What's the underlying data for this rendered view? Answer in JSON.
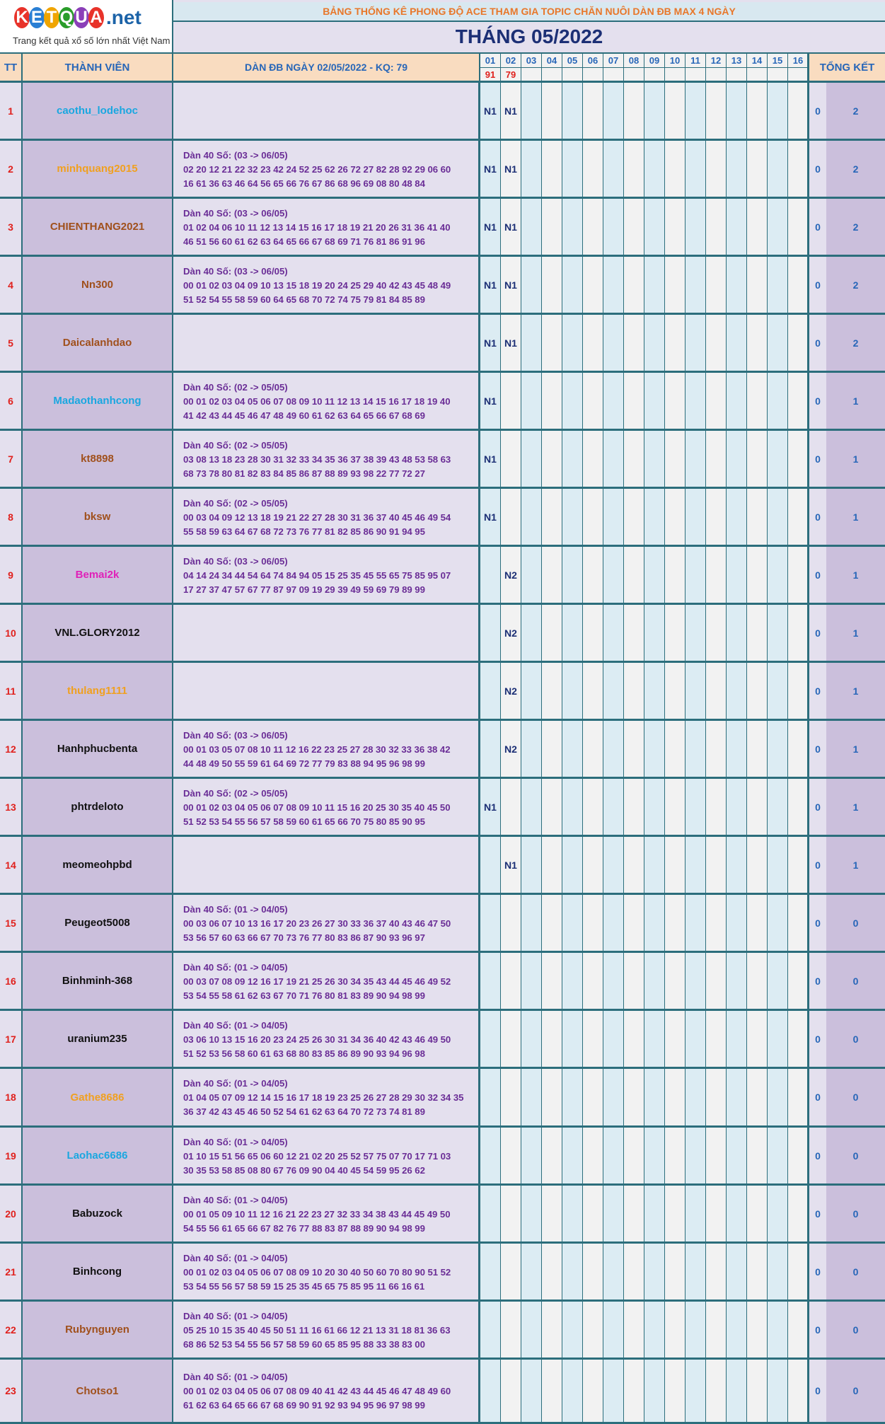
{
  "logo": {
    "letters": [
      "K",
      "E",
      "T",
      "Q",
      "U",
      "A"
    ],
    "letter_colors": [
      "#e8332a",
      "#2a7fd4",
      "#f0a500",
      "#2a9d2a",
      "#8b3fb8",
      "#e8332a"
    ],
    "suffix": ".net",
    "tagline": "Trang kết quả xổ số lớn nhất Việt Nam"
  },
  "header": {
    "title": "BẢNG THỐNG KÊ PHONG ĐỘ ACE THAM GIA TOPIC CHĂN NUÔI DÀN ĐB MAX 4 NGÀY",
    "month": "THÁNG 05/2022"
  },
  "columns": {
    "tt": "TT",
    "member": "THÀNH VIÊN",
    "dan": "DÀN ĐB NGÀY 02/05/2022 - KQ: 79",
    "total": "TỔNG KẾT",
    "days": [
      "01",
      "02",
      "03",
      "04",
      "05",
      "06",
      "07",
      "08",
      "09",
      "10",
      "11",
      "12",
      "13",
      "14",
      "15",
      "16"
    ],
    "kq": [
      "91",
      "79",
      "",
      "",
      "",
      "",
      "",
      "",
      "",
      "",
      "",
      "",
      "",
      "",
      "",
      ""
    ]
  },
  "colors": {
    "accent_border": "#2c6e7c",
    "header_bg": "#f9dcc0",
    "day_col_light": "#dcecf3",
    "day_col_grey": "#f2f2f2"
  },
  "rows": [
    {
      "tt": "1",
      "name": "caothu_lodehoc",
      "color": "#1aa7e0",
      "h": "",
      "l1": "",
      "l2": "",
      "d1": "N1",
      "d2": "N1",
      "t1": "0",
      "t2": "2"
    },
    {
      "tt": "2",
      "name": "minhquang2015",
      "color": "#f0a020",
      "h": "Dàn 40 Số: (03 -> 06/05)",
      "l1": "02 20 12 21 22 32 23 42 24 52 25 62 26 72 27 82 28 92 29 06 60",
      "l2": "16 61 36 63 46 64 56 65 66 76 67 86 68 96 69 08 80 48 84",
      "d1": "N1",
      "d2": "N1",
      "t1": "0",
      "t2": "2"
    },
    {
      "tt": "3",
      "name": "CHIENTHANG2021",
      "color": "#a0501c",
      "h": "Dàn 40 Số: (03 -> 06/05)",
      "l1": "01 02 04 06 10 11 12 13 14 15 16 17 18 19 21 20 26 31 36 41 40",
      "l2": "46 51 56 60 61 62 63 64 65 66 67 68 69 71 76 81 86 91 96",
      "d1": "N1",
      "d2": "N1",
      "t1": "0",
      "t2": "2"
    },
    {
      "tt": "4",
      "name": "Nn300",
      "color": "#a0501c",
      "h": "Dàn 40 Số: (03 -> 06/05)",
      "l1": "00 01 02 03 04 09 10 13 15 18 19 20 24 25 29 40 42 43 45 48 49",
      "l2": "51 52 54 55 58 59 60 64 65 68 70 72 74 75 79 81 84 85 89",
      "d1": "N1",
      "d2": "N1",
      "t1": "0",
      "t2": "2"
    },
    {
      "tt": "5",
      "name": "Daicalanhdao",
      "color": "#a0501c",
      "h": "",
      "l1": "",
      "l2": "",
      "d1": "N1",
      "d2": "N1",
      "t1": "0",
      "t2": "2"
    },
    {
      "tt": "6",
      "name": "Madaothanhcong",
      "color": "#1aa7e0",
      "h": "Dàn 40 Số: (02 -> 05/05)",
      "l1": "00 01 02 03 04 05 06 07 08 09 10 11 12 13 14 15 16 17 18 19 40",
      "l2": "41 42 43 44 45 46 47 48 49 60 61 62 63 64 65 66 67 68 69",
      "d1": "N1",
      "d2": "",
      "t1": "0",
      "t2": "1"
    },
    {
      "tt": "7",
      "name": "kt8898",
      "color": "#a0501c",
      "h": "Dàn 40 Số: (02 -> 05/05)",
      "l1": "03 08 13 18 23 28 30 31 32 33 34 35 36 37 38 39 43 48 53 58 63",
      "l2": "68 73 78 80 81 82 83 84 85 86 87 88 89 93 98 22 77 72 27",
      "d1": "N1",
      "d2": "",
      "t1": "0",
      "t2": "1"
    },
    {
      "tt": "8",
      "name": "bksw",
      "color": "#a0501c",
      "h": "Dàn 40 Số: (02 -> 05/05)",
      "l1": "00 03 04 09 12 13 18 19 21 22 27 28 30 31 36 37 40 45 46 49 54",
      "l2": "55 58 59 63 64 67 68 72 73 76 77 81 82 85 86 90 91 94 95",
      "d1": "N1",
      "d2": "",
      "t1": "0",
      "t2": "1"
    },
    {
      "tt": "9",
      "name": "Bemai2k",
      "color": "#e020b8",
      "h": "Dàn 40 Số: (03 -> 06/05)",
      "l1": "04 14 24 34 44 54 64 74 84 94 05 15 25 35 45 55 65 75 85 95 07",
      "l2": "17 27 37 47 57 67 77 87 97 09 19 29 39 49 59 69 79 89 99",
      "d1": "",
      "d2": "N2",
      "t1": "0",
      "t2": "1"
    },
    {
      "tt": "10",
      "name": "VNL.GLORY2012",
      "color": "#111111",
      "h": "",
      "l1": "",
      "l2": "",
      "d1": "",
      "d2": "N2",
      "t1": "0",
      "t2": "1"
    },
    {
      "tt": "11",
      "name": "thulang1111",
      "color": "#f0a020",
      "h": "",
      "l1": "",
      "l2": "",
      "d1": "",
      "d2": "N2",
      "t1": "0",
      "t2": "1"
    },
    {
      "tt": "12",
      "name": "Hanhphucbenta",
      "color": "#111111",
      "h": "Dàn 40 Số: (03 -> 06/05)",
      "l1": "00 01 03 05 07 08 10 11 12 16 22 23 25 27 28 30 32 33 36 38 42",
      "l2": "44 48 49 50 55 59 61 64 69 72 77 79 83 88 94 95 96 98 99",
      "d1": "",
      "d2": "N2",
      "t1": "0",
      "t2": "1"
    },
    {
      "tt": "13",
      "name": "phtrdeloto",
      "color": "#111111",
      "h": "Dàn 40 Số: (02 -> 05/05)",
      "l1": "00 01 02 03 04 05 06 07 08 09 10 11 15 16 20 25 30 35 40 45 50",
      "l2": "51 52 53 54 55 56 57 58 59 60 61 65 66 70 75 80 85 90 95",
      "d1": "N1",
      "d2": "",
      "t1": "0",
      "t2": "1"
    },
    {
      "tt": "14",
      "name": "meomeohpbd",
      "color": "#111111",
      "h": "",
      "l1": "",
      "l2": "",
      "d1": "",
      "d2": "N1",
      "t1": "0",
      "t2": "1"
    },
    {
      "tt": "15",
      "name": "Peugeot5008",
      "color": "#111111",
      "h": "Dàn 40 Số: (01 -> 04/05)",
      "l1": "00 03 06 07 10 13 16 17 20 23 26 27 30 33 36 37 40 43 46 47 50",
      "l2": "53 56 57 60 63 66 67 70 73 76 77 80 83 86 87 90 93 96 97",
      "d1": "",
      "d2": "",
      "t1": "0",
      "t2": "0"
    },
    {
      "tt": "16",
      "name": "Binhminh-368",
      "color": "#111111",
      "h": "Dàn 40 Số: (01 -> 04/05)",
      "l1": "00 03 07 08 09 12 16 17 19 21 25 26 30 34 35 43 44 45 46 49 52",
      "l2": "53 54 55 58 61 62 63 67 70 71 76 80 81 83 89 90 94 98 99",
      "d1": "",
      "d2": "",
      "t1": "0",
      "t2": "0"
    },
    {
      "tt": "17",
      "name": "uranium235",
      "color": "#111111",
      "h": "Dàn 40 Số: (01 -> 04/05)",
      "l1": "03 06 10 13 15 16 20 23 24 25 26 30 31 34 36 40 42 43 46 49 50",
      "l2": "51 52 53 56 58 60 61 63 68 80 83 85 86 89 90 93 94 96 98",
      "d1": "",
      "d2": "",
      "t1": "0",
      "t2": "0"
    },
    {
      "tt": "18",
      "name": "Gathe8686",
      "color": "#f0a020",
      "h": "Dàn 40 Số: (01 -> 04/05)",
      "l1": "01 04 05 07 09 12 14 15 16 17 18 19 23 25 26 27 28 29 30 32 34 35",
      "l2": "36 37 42 43 45 46 50 52 54 61 62 63 64 70 72 73 74 81 89",
      "d1": "",
      "d2": "",
      "t1": "0",
      "t2": "0"
    },
    {
      "tt": "19",
      "name": "Laohac6686",
      "color": "#1aa7e0",
      "h": "Dàn 40 Số: (01 -> 04/05)",
      "l1": "01 10 15 51 56 65 06 60 12 21 02 20 25 52 57 75 07 70 17 71 03",
      "l2": "30 35 53 58 85 08 80 67 76 09 90 04 40 45 54 59 95 26 62",
      "d1": "",
      "d2": "",
      "t1": "0",
      "t2": "0"
    },
    {
      "tt": "20",
      "name": "Babuzock",
      "color": "#111111",
      "h": "Dàn 40 Số: (01 -> 04/05)",
      "l1": "00 01 05 09 10 11 12 16 21 22 23 27 32 33 34 38 43 44 45 49 50",
      "l2": "54 55 56 61 65 66 67 82 76 77 88 83 87 88 89 90 94 98 99",
      "d1": "",
      "d2": "",
      "t1": "0",
      "t2": "0"
    },
    {
      "tt": "21",
      "name": "Binhcong",
      "color": "#111111",
      "h": "Dàn 40 Số: (01 -> 04/05)",
      "l1": "00 01 02 03 04 05 06 07 08 09 10 20 30 40 50 60 70 80 90 51 52",
      "l2": "53 54 55 56 57 58 59 15 25 35 45 65 75 85 95 11 66 16 61",
      "d1": "",
      "d2": "",
      "t1": "0",
      "t2": "0"
    },
    {
      "tt": "22",
      "name": "Rubynguyen",
      "color": "#a0501c",
      "h": "Dàn 40 Số: (01 -> 04/05)",
      "l1": "05 25 10 15 35 40 45 50 51 11 16 61 66 12 21 13 31 18 81 36 63",
      "l2": "68 86 52 53 54 55 56 57 58 59 60 65 85 95 88 33 38 83 00",
      "d1": "",
      "d2": "",
      "t1": "0",
      "t2": "0"
    },
    {
      "tt": "23",
      "name": "Chotso1",
      "color": "#a0501c",
      "h": "Dàn 40 Số: (01 -> 04/05)",
      "l1": "00 01 02 03 04 05 06 07 08 09 40 41 42 43 44 45 46 47 48 49 60",
      "l2": "61 62 63 64 65 66 67 68 69 90 91 92 93 94 95 96 97 98 99",
      "d1": "",
      "d2": "",
      "t1": "0",
      "t2": "0"
    }
  ]
}
